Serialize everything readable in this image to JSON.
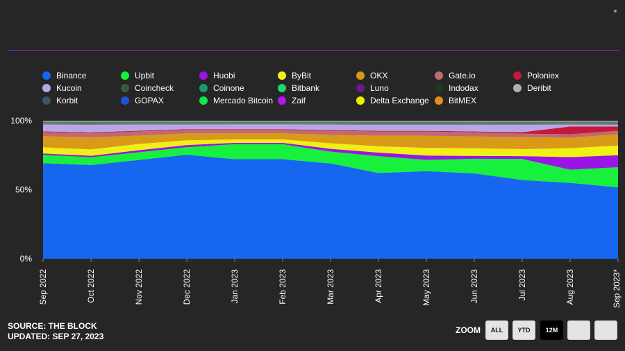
{
  "footer": {
    "source": "SOURCE: THE BLOCK",
    "updated": "UPDATED: SEP 27, 2023"
  },
  "zoom": {
    "label": "ZOOM",
    "buttons": [
      "ALL",
      "YTD",
      "12M",
      "",
      ""
    ],
    "active": "12M"
  },
  "chart_data": {
    "type": "area",
    "stacked": true,
    "title": "",
    "xlabel": "",
    "ylabel": "",
    "y_ticks": [
      "100%",
      "50%",
      "0%"
    ],
    "ylim": [
      0,
      100
    ],
    "x": [
      "Sep 2022",
      "Oct 2022",
      "Nov 2022",
      "Dec 2022",
      "Jan 2023",
      "Feb 2023",
      "Mar 2023",
      "Apr 2023",
      "May 2023",
      "Jun 2023",
      "Jul 2023",
      "Aug 2023",
      "Sep 2023*"
    ],
    "legend_position": "top",
    "series": [
      {
        "name": "Binance",
        "color": "#1666f0",
        "values": [
          69,
          66,
          71,
          75.5,
          73,
          73,
          68.5,
          61,
          62,
          61,
          56,
          54.5,
          51
        ]
      },
      {
        "name": "Upbit",
        "color": "#17f03c",
        "values": [
          6,
          5.5,
          5.5,
          5.5,
          11,
          11,
          8.5,
          12,
          8,
          10.5,
          15,
          9.5,
          14.5
        ]
      },
      {
        "name": "Huobi",
        "color": "#9b14e6",
        "values": [
          1,
          1,
          1.5,
          1.5,
          1,
          1,
          2,
          2.5,
          3,
          2,
          2,
          9,
          8.5
        ]
      },
      {
        "name": "ByBit",
        "color": "#f0f014",
        "values": [
          4.5,
          4.5,
          4.5,
          3.5,
          2.5,
          2.5,
          4,
          4.5,
          5.5,
          5.5,
          5,
          6.5,
          7
        ]
      },
      {
        "name": "OKX",
        "color": "#d99a18",
        "values": [
          8,
          8.5,
          6,
          5,
          4.5,
          4.5,
          6,
          7.5,
          8.5,
          8.5,
          8.5,
          7.5,
          8
        ]
      },
      {
        "name": "Gate.io",
        "color": "#c06a70",
        "values": [
          3,
          3,
          3,
          2.5,
          2.5,
          2.5,
          3,
          3,
          3,
          3,
          2.5,
          2.5,
          2.5
        ]
      },
      {
        "name": "Poloniex",
        "color": "#c4183c",
        "values": [
          0.5,
          0.5,
          0.5,
          0.5,
          0.5,
          0.5,
          0.5,
          0.5,
          0.5,
          0.5,
          1,
          5.5,
          3
        ]
      },
      {
        "name": "Kucoin",
        "color": "#b8a6e6",
        "values": [
          5,
          5.5,
          4.5,
          3.5,
          3.5,
          3.5,
          4,
          4.5,
          4.5,
          5,
          5.5,
          1.5,
          1.5
        ]
      },
      {
        "name": "Coincheck",
        "color": "#3a5a3f",
        "values": [
          0.3,
          0.3,
          0.3,
          0.3,
          0.3,
          0.3,
          0.3,
          0.3,
          0.3,
          0.3,
          0.3,
          0.3,
          0.3
        ]
      },
      {
        "name": "Coinone",
        "color": "#1e9a6a",
        "values": [
          0.3,
          0.3,
          0.3,
          0.3,
          0.3,
          0.3,
          0.3,
          0.3,
          0.3,
          0.3,
          0.3,
          0.3,
          0.3
        ]
      },
      {
        "name": "Bitbank",
        "color": "#22d66a",
        "values": [
          0.2,
          0.2,
          0.2,
          0.2,
          0.2,
          0.2,
          0.2,
          0.2,
          0.2,
          0.2,
          0.2,
          0.2,
          0.2
        ]
      },
      {
        "name": "Luno",
        "color": "#6a1a8a",
        "values": [
          0.2,
          0.2,
          0.2,
          0.2,
          0.2,
          0.2,
          0.2,
          0.2,
          0.2,
          0.2,
          0.2,
          0.2,
          0.2
        ]
      },
      {
        "name": "Indodax",
        "color": "#1e3a1e",
        "values": [
          0.5,
          0.5,
          0.5,
          0.5,
          0.5,
          0.5,
          0.5,
          0.5,
          0.5,
          0.5,
          0.5,
          0.5,
          0.5
        ]
      },
      {
        "name": "Deribit",
        "color": "#b0b0b0",
        "values": [
          0.5,
          0.5,
          0.5,
          0.5,
          0.5,
          0.5,
          0.5,
          0.5,
          0.5,
          0.5,
          0.5,
          0.5,
          0.5
        ]
      },
      {
        "name": "Korbit",
        "color": "#3a5560",
        "values": [
          0.2,
          0.2,
          0.2,
          0.2,
          0.2,
          0.2,
          0.2,
          0.2,
          0.2,
          0.2,
          0.2,
          0.2,
          0.2
        ]
      },
      {
        "name": "GOPAX",
        "color": "#1a55d8",
        "values": [
          0.1,
          0.1,
          0.1,
          0.1,
          0.1,
          0.1,
          0.1,
          0.1,
          0.1,
          0.1,
          0.1,
          0.1,
          0.1
        ]
      },
      {
        "name": "Mercado Bitcoin",
        "color": "#14e848",
        "values": [
          0.1,
          0.1,
          0.1,
          0.1,
          0.1,
          0.1,
          0.1,
          0.1,
          0.1,
          0.1,
          0.1,
          0.1,
          0.1
        ]
      },
      {
        "name": "Zaif",
        "color": "#b414f0",
        "values": [
          0.1,
          0.1,
          0.1,
          0.1,
          0.1,
          0.1,
          0.1,
          0.1,
          0.1,
          0.1,
          0.1,
          0.1,
          0.1
        ]
      },
      {
        "name": "Delta Exchange",
        "color": "#f0f000",
        "values": [
          0.1,
          0.1,
          0.1,
          0.1,
          0.1,
          0.1,
          0.1,
          0.1,
          0.1,
          0.1,
          0.1,
          0.1,
          0.1
        ]
      },
      {
        "name": "BitMEX",
        "color": "#e09018",
        "values": [
          0.1,
          0.1,
          0.1,
          0.1,
          0.1,
          0.1,
          0.1,
          0.1,
          0.1,
          0.1,
          0.1,
          0.1,
          0.1
        ]
      }
    ]
  }
}
